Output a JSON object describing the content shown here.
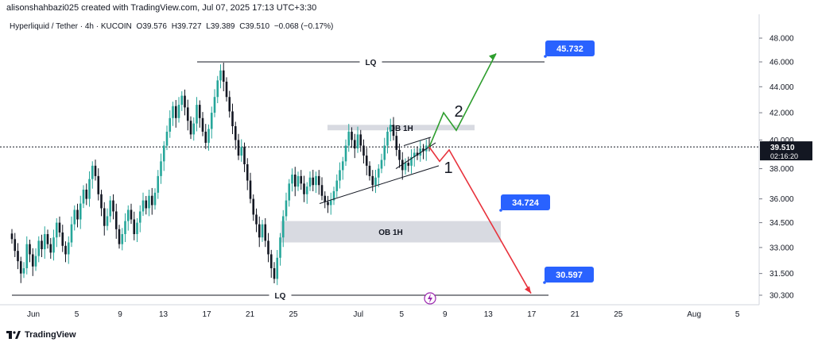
{
  "credit": "alisonshahbazi025 created with TradingView.com, Jul 07, 2025 17:13 UTC+3:30",
  "header": {
    "symbol": "Hyperliquid / Tether · 4h · KUCOIN",
    "open": "O39.576",
    "high": "H39.727",
    "low": "L39.389",
    "close": "C39.510",
    "change": "−0.068 (−0.17%)"
  },
  "brand": "TradingView",
  "colors": {
    "up_candle": "#26a69a",
    "down_candle": "#131722",
    "bullish_path": "#2e9e2e",
    "bearish_path": "#e8323c",
    "target_badge": "#2962ff",
    "price_label": "#131722",
    "zone": "#d1d4dc"
  },
  "chart_data": {
    "type": "candlestick",
    "y_axis": {
      "ticks": [
        "48.000",
        "46.000",
        "44.000",
        "42.000",
        "40.000",
        "38.000",
        "36.000",
        "34.500",
        "33.000",
        "31.500",
        "30.300"
      ],
      "scale": "log"
    },
    "x_axis": {
      "ticks": [
        "Jun",
        "5",
        "9",
        "13",
        "17",
        "21",
        "25",
        "Jul",
        "5",
        "9",
        "13",
        "17",
        "21",
        "25",
        "Aug",
        "5"
      ]
    },
    "last_price": {
      "value": "39.510",
      "countdown": "02:16:20"
    },
    "closes": [
      33.5,
      32.8,
      32.2,
      31.5,
      31.8,
      33.2,
      32.6,
      31.9,
      32.5,
      33.4,
      32.9,
      33.8,
      33.2,
      32.7,
      33.6,
      34.5,
      33.9,
      33.1,
      32.6,
      33.3,
      34.4,
      35.3,
      34.7,
      35.7,
      36.6,
      36.0,
      37.3,
      38.2,
      37.5,
      36.3,
      35.4,
      34.3,
      34.9,
      35.9,
      35.2,
      34.1,
      33.2,
      33.8,
      34.6,
      35.3,
      34.7,
      33.8,
      34.5,
      35.2,
      35.9,
      35.4,
      36.2,
      35.6,
      36.4,
      37.5,
      38.5,
      39.6,
      40.6,
      41.6,
      42.5,
      41.6,
      42.6,
      43.3,
      42.4,
      41.4,
      40.4,
      41.2,
      42.6,
      41.6,
      40.6,
      39.8,
      40.8,
      42.0,
      43.2,
      44.5,
      45.3,
      44.4,
      43.2,
      42.1,
      41.0,
      40.0,
      38.9,
      39.5,
      38.3,
      37.2,
      36.0,
      35.0,
      34.4,
      33.6,
      34.4,
      33.4,
      32.6,
      31.8,
      31.2,
      32.4,
      33.6,
      34.9,
      35.9,
      37.0,
      37.6,
      36.8,
      37.5,
      37.0,
      36.3,
      36.8,
      37.4,
      36.9,
      37.5,
      36.9,
      36.2,
      35.8,
      35.6,
      35.9,
      36.5,
      37.2,
      37.9,
      38.5,
      39.6,
      40.6,
      40.0,
      39.4,
      40.4,
      39.6,
      38.9,
      38.2,
      37.5,
      36.9,
      37.4,
      38.0,
      38.6,
      39.6,
      40.6,
      41.1,
      40.3,
      39.3,
      38.6,
      37.9,
      38.4,
      38.2,
      38.8,
      39.1,
      38.9,
      39.4,
      39.2,
      39.6,
      39.51
    ],
    "levels": [
      {
        "name": "LQ",
        "value": 46.0
      },
      {
        "name": "LQ",
        "value": 30.3
      }
    ],
    "zones": [
      {
        "name": "OB 1H",
        "low": 40.7,
        "high": 41.1
      },
      {
        "name": "OB 1H",
        "low": 33.3,
        "high": 34.6
      }
    ],
    "targets": [
      "45.732",
      "34.724",
      "30.597"
    ],
    "scenario_labels": [
      "2",
      "1"
    ]
  }
}
